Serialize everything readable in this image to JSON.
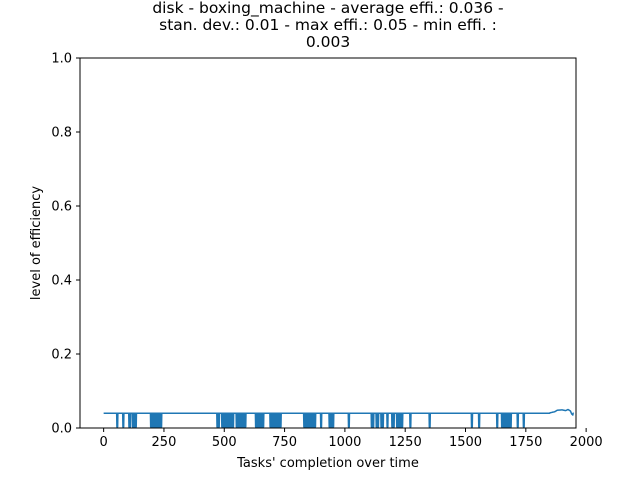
{
  "chart_data": {
    "type": "line",
    "title_lines": [
      "disk - boxing_machine - average effi.: 0.036 -",
      "stan. dev.: 0.01 - max effi.: 0.05 - min effi. :",
      "0.003"
    ],
    "xlabel": "Tasks' completion over time",
    "ylabel": "level of efficiency",
    "xlim": [
      -98,
      1958
    ],
    "ylim": [
      0,
      1
    ],
    "xticks": [
      0,
      250,
      500,
      750,
      1000,
      1250,
      1500,
      1750,
      2000
    ],
    "yticks": [
      0.0,
      0.2,
      0.4,
      0.6,
      0.8,
      1.0
    ],
    "xtick_labels": [
      "0",
      "250",
      "500",
      "750",
      "1000",
      "1250",
      "1500",
      "1750",
      "2000"
    ],
    "ytick_labels": [
      "0.0",
      "0.2",
      "0.4",
      "0.6",
      "0.8",
      "1.0"
    ],
    "grid": false,
    "series": [
      {
        "color": "#1f77b4",
        "n_points": 1950,
        "base_efficiency": 0.04,
        "dip_value": 0.003,
        "dips": [
          [
            55,
            60
          ],
          [
            80,
            85
          ],
          [
            105,
            112
          ],
          [
            120,
            135
          ],
          [
            195,
            240
          ],
          [
            470,
            480
          ],
          [
            490,
            540
          ],
          [
            550,
            590
          ],
          [
            630,
            665
          ],
          [
            690,
            735
          ],
          [
            830,
            880
          ],
          [
            900,
            905
          ],
          [
            935,
            955
          ],
          [
            1015,
            1020
          ],
          [
            1110,
            1120
          ],
          [
            1130,
            1140
          ],
          [
            1150,
            1160
          ],
          [
            1175,
            1180
          ],
          [
            1195,
            1205
          ],
          [
            1215,
            1240
          ],
          [
            1270,
            1275
          ],
          [
            1350,
            1355
          ],
          [
            1525,
            1530
          ],
          [
            1555,
            1560
          ],
          [
            1630,
            1635
          ],
          [
            1650,
            1690
          ],
          [
            1715,
            1720
          ],
          [
            1740,
            1745
          ]
        ],
        "tail": [
          [
            1850,
            0.041
          ],
          [
            1870,
            0.044
          ],
          [
            1880,
            0.048
          ],
          [
            1900,
            0.049
          ],
          [
            1915,
            0.047
          ],
          [
            1925,
            0.05
          ],
          [
            1935,
            0.046
          ],
          [
            1940,
            0.038
          ],
          [
            1945,
            0.035
          ]
        ]
      }
    ]
  }
}
